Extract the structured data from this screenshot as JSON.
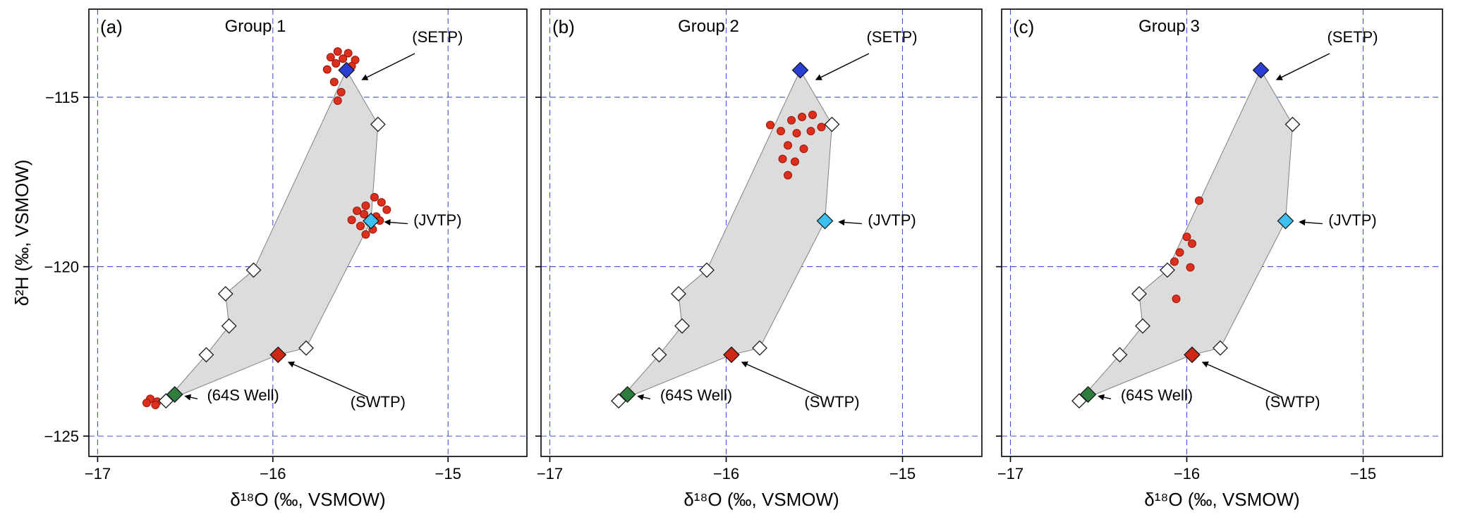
{
  "figure": {
    "background": "#ffffff",
    "grid_color": "#2233cc",
    "grid_style": "dashed",
    "hull_fill": "#dcdcdc",
    "hull_stroke": "#808080",
    "sample_color": "#dd2f1e",
    "sample_stroke": "#991507",
    "open_marker_fill": "#ffffff",
    "axis_color": "#000000"
  },
  "chart_data": {
    "type": "scatter",
    "xlabel": "δ¹⁸O (‰, VSMOW)",
    "ylabel": "δ²H (‰, VSMOW)",
    "xlim": [
      -17.05,
      -14.55
    ],
    "ylim": [
      -125.6,
      -112.4
    ],
    "xticks": [
      -17,
      -16,
      -15
    ],
    "yticks": [
      -115,
      -120,
      -125
    ],
    "grid": "dashed blue at every labeled tick",
    "legend_position": "none",
    "shared_overlay": {
      "endmembers": [
        {
          "name": "SETP",
          "label": "(SETP)",
          "x": -15.58,
          "y": -114.2,
          "color": "#2a3fd4"
        },
        {
          "name": "JVTP",
          "label": "(JVTP)",
          "x": -15.44,
          "y": -118.65,
          "color": "#3cc0f0"
        },
        {
          "name": "SWTP",
          "label": "(SWTP)",
          "x": -15.97,
          "y": -122.6,
          "color": "#cc2814"
        },
        {
          "name": "64S Well",
          "label": "(64S Well)",
          "x": -16.56,
          "y": -123.77,
          "color": "#2e7d3c"
        }
      ],
      "open_diamonds": [
        [
          -15.4,
          -115.8
        ],
        [
          -16.11,
          -120.1
        ],
        [
          -16.27,
          -120.8
        ],
        [
          -16.25,
          -121.75
        ],
        [
          -16.38,
          -122.6
        ],
        [
          -15.81,
          -122.4
        ],
        [
          -16.61,
          -123.96
        ]
      ],
      "mixing_hull": [
        [
          -15.58,
          -114.2
        ],
        [
          -15.4,
          -115.8
        ],
        [
          -15.44,
          -118.65
        ],
        [
          -15.81,
          -122.4
        ],
        [
          -15.97,
          -122.6
        ],
        [
          -16.61,
          -123.96
        ],
        [
          -16.38,
          -122.6
        ],
        [
          -16.25,
          -121.75
        ],
        [
          -16.27,
          -120.8
        ],
        [
          -16.11,
          -120.1
        ]
      ],
      "annotations": [
        {
          "text": "(SETP)",
          "text_x": -15.06,
          "text_y": -113.38,
          "tail_x": -15.19,
          "tail_y": -113.71,
          "tip_x": -15.49,
          "tip_y": -114.48
        },
        {
          "text": "(JVTP)",
          "text_x": -15.06,
          "text_y": -118.78,
          "tail_x": -15.23,
          "tail_y": -118.73,
          "tip_x": -15.36,
          "tip_y": -118.68
        },
        {
          "text": "(SWTP)",
          "text_x": -15.4,
          "text_y": -124.15,
          "tail_x": -15.46,
          "tail_y": -123.85,
          "tip_x": -15.91,
          "tip_y": -122.82
        },
        {
          "text": "(64S Well)",
          "text_x": -16.17,
          "text_y": -123.95,
          "tail_x": -16.43,
          "tail_y": -123.9,
          "tip_x": -16.5,
          "tip_y": -123.82
        }
      ]
    },
    "panels": [
      {
        "panel_label": "(a)",
        "title": "Group 1",
        "show_y_tick_labels": true,
        "show_y_axis_title": true,
        "samples": [
          [
            -15.63,
            -113.65
          ],
          [
            -15.57,
            -113.7
          ],
          [
            -15.67,
            -113.82
          ],
          [
            -15.6,
            -113.86
          ],
          [
            -15.53,
            -113.9
          ],
          [
            -15.64,
            -114.0
          ],
          [
            -15.55,
            -114.08
          ],
          [
            -15.69,
            -114.18
          ],
          [
            -15.65,
            -114.55
          ],
          [
            -15.61,
            -114.85
          ],
          [
            -15.63,
            -115.1
          ],
          [
            -15.42,
            -117.95
          ],
          [
            -15.38,
            -118.1
          ],
          [
            -15.47,
            -118.2
          ],
          [
            -15.52,
            -118.35
          ],
          [
            -15.35,
            -118.32
          ],
          [
            -15.48,
            -118.45
          ],
          [
            -15.41,
            -118.52
          ],
          [
            -15.55,
            -118.62
          ],
          [
            -15.45,
            -118.68
          ],
          [
            -15.5,
            -118.8
          ],
          [
            -15.43,
            -118.9
          ],
          [
            -15.39,
            -118.64
          ],
          [
            -15.47,
            -119.05
          ],
          [
            -16.7,
            -123.9
          ],
          [
            -16.66,
            -123.98
          ],
          [
            -16.61,
            -123.92
          ],
          [
            -16.67,
            -124.08
          ],
          [
            -16.72,
            -124.02
          ]
        ]
      },
      {
        "panel_label": "(b)",
        "title": "Group 2",
        "show_y_tick_labels": false,
        "show_y_axis_title": false,
        "samples": [
          [
            -15.75,
            -115.82
          ],
          [
            -15.63,
            -115.68
          ],
          [
            -15.57,
            -115.58
          ],
          [
            -15.51,
            -115.52
          ],
          [
            -15.69,
            -116.0
          ],
          [
            -15.6,
            -116.06
          ],
          [
            -15.52,
            -116.0
          ],
          [
            -15.46,
            -115.88
          ],
          [
            -15.65,
            -116.42
          ],
          [
            -15.56,
            -116.52
          ],
          [
            -15.68,
            -116.82
          ],
          [
            -15.61,
            -116.9
          ],
          [
            -15.65,
            -117.3
          ]
        ]
      },
      {
        "panel_label": "(c)",
        "title": "Group 3",
        "show_y_tick_labels": false,
        "show_y_axis_title": false,
        "samples": [
          [
            -15.93,
            -118.05
          ],
          [
            -16.0,
            -119.12
          ],
          [
            -15.97,
            -119.32
          ],
          [
            -16.04,
            -119.58
          ],
          [
            -16.07,
            -119.85
          ],
          [
            -15.98,
            -120.02
          ],
          [
            -16.06,
            -120.95
          ]
        ]
      }
    ]
  }
}
